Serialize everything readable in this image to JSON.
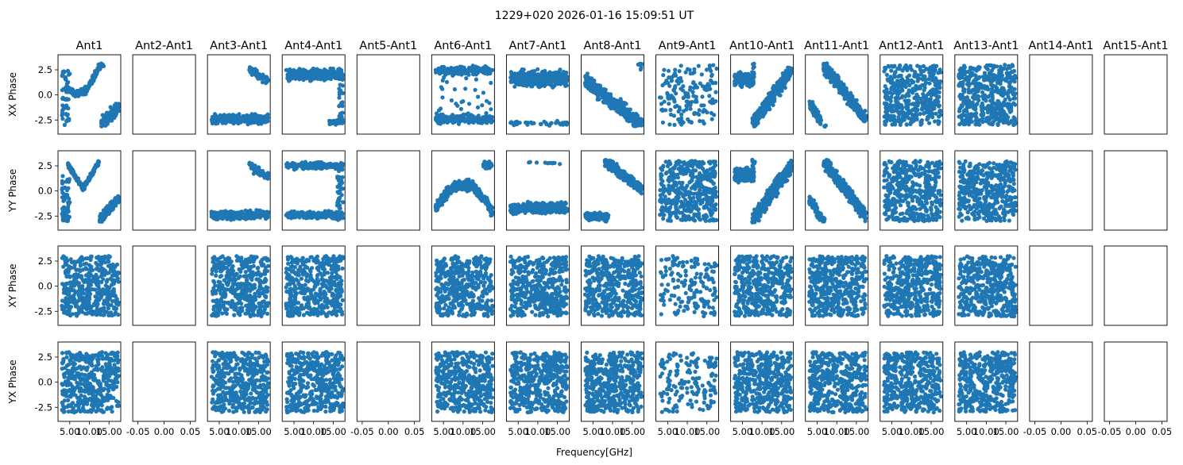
{
  "chart_data": {
    "type": "scatter",
    "title": "1229+020 2026-01-16 15:09:51 UT",
    "xlabel": "Frequency[GHz]",
    "marker_color": "#1f77b4",
    "columns": [
      "Ant1",
      "Ant2-Ant1",
      "Ant3-Ant1",
      "Ant4-Ant1",
      "Ant5-Ant1",
      "Ant6-Ant1",
      "Ant7-Ant1",
      "Ant8-Ant1",
      "Ant9-Ant1",
      "Ant10-Ant1",
      "Ant11-Ant1",
      "Ant12-Ant1",
      "Ant13-Ant1",
      "Ant14-Ant1",
      "Ant15-Ant1"
    ],
    "rows": [
      "XX Phase",
      "YY Phase",
      "XY Phase",
      "YX Phase"
    ],
    "ylim": [
      -3.9,
      4.0
    ],
    "yticks": [
      -2.5,
      0.0,
      2.5
    ],
    "ytick_labels": [
      "-2.5",
      "0.0",
      "2.5"
    ],
    "data_xlim": [
      2.0,
      18.0
    ],
    "data_xticks": [
      5.0,
      10.0,
      15.0
    ],
    "data_xtick_labels": [
      "5.00",
      "10.00",
      "15.00"
    ],
    "empty_xlim": [
      -0.06,
      0.06
    ],
    "empty_xticks": [
      -0.05,
      0.0,
      0.05
    ],
    "empty_xtick_labels": [
      "-0.05",
      "0.00",
      "0.05"
    ],
    "frequency_range": [
      3.0,
      17.5
    ],
    "empty_columns": [
      "Ant2-Ant1",
      "Ant5-Ant1",
      "Ant14-Ant1",
      "Ant15-Ant1"
    ],
    "patterns": {
      "XX Phase": [
        "ant1_xx",
        "empty",
        "low_band",
        "high_band",
        "empty",
        "two_band",
        "high_wide",
        "descending",
        "sparse_random",
        "rising_wrap",
        "falling_wrap",
        "random",
        "random",
        "empty",
        "empty"
      ],
      "YY Phase": [
        "ant1_yy",
        "empty",
        "low_band",
        "low_high",
        "empty",
        "arc",
        "mid_low",
        "low_then_high",
        "random",
        "rising_wrap",
        "falling_wrap",
        "random",
        "random",
        "empty",
        "empty"
      ],
      "XY Phase": [
        "random",
        "empty",
        "random",
        "random",
        "empty",
        "random",
        "random",
        "random",
        "sparse_random",
        "random",
        "random",
        "random",
        "random",
        "empty",
        "empty"
      ],
      "YX Phase": [
        "random",
        "empty",
        "random",
        "random",
        "empty",
        "random",
        "random",
        "random",
        "sparse_random",
        "random",
        "random",
        "random",
        "random",
        "empty",
        "empty"
      ]
    }
  }
}
